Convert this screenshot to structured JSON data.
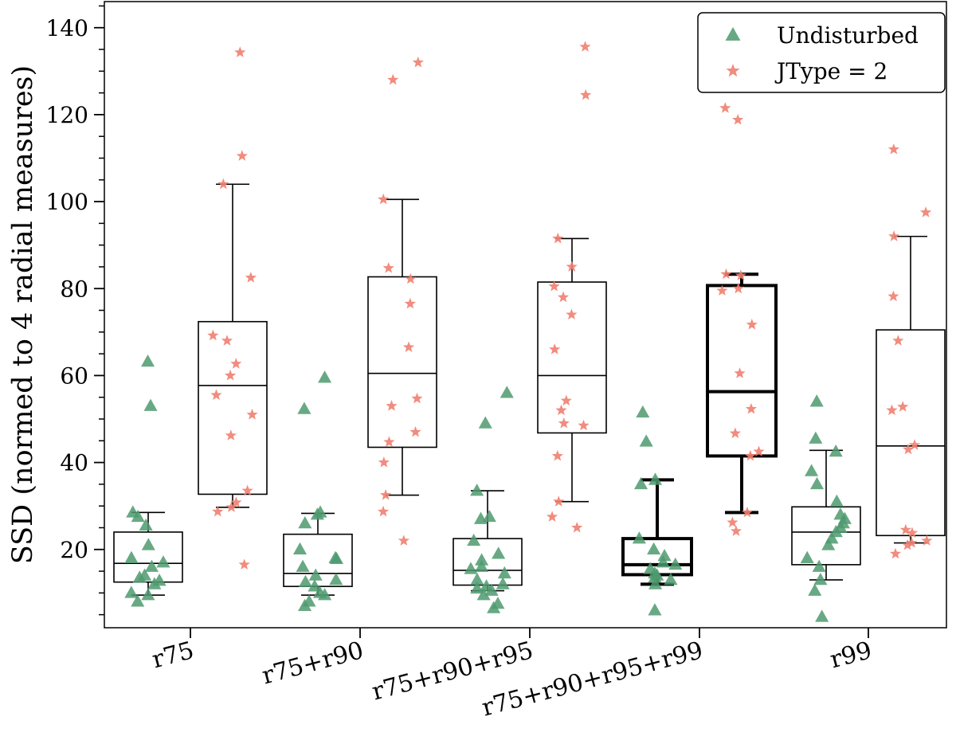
{
  "chart_data": {
    "type": "box",
    "title": "",
    "xlabel": "",
    "ylabel": "SSD (normed to 4 radial measures)",
    "ylim": [
      2,
      146
    ],
    "yticks": [
      20,
      40,
      60,
      80,
      100,
      120,
      140
    ],
    "yminor_step": 5,
    "categories": [
      "r75",
      "r75+r90",
      "r75+r90+r95",
      "r75+r90+r95+r99",
      "r99"
    ],
    "legend": {
      "position": "top-right",
      "entries": [
        {
          "label": "Undisturbed",
          "marker": "triangle",
          "color": "#4e9a6e"
        },
        {
          "label": "JType = 2",
          "marker": "star",
          "color": "#f08070"
        }
      ]
    },
    "series": [
      {
        "name": "Undisturbed",
        "marker": "triangle",
        "color": "#4e9a6e",
        "boxes": [
          {
            "whislo": 9.5,
            "q1": 12.5,
            "med": 16.8,
            "q3": 24,
            "whishi": 28.5,
            "bold": false
          },
          {
            "whislo": 9.5,
            "q1": 11.5,
            "med": 14.5,
            "q3": 23.5,
            "whishi": 28.3,
            "bold": false
          },
          {
            "whislo": 10.5,
            "q1": 11.8,
            "med": 15.2,
            "q3": 22.5,
            "whishi": 33.5,
            "bold": false
          },
          {
            "whislo": 12,
            "q1": 14.2,
            "med": 16.5,
            "q3": 22.5,
            "whishi": 36,
            "bold": true
          },
          {
            "whislo": 13,
            "q1": 16.5,
            "med": 24,
            "q3": 29.8,
            "whishi": 42.8,
            "bold": false
          }
        ],
        "points": [
          [
            63.2,
            53,
            28.5,
            27.5,
            25.5,
            21,
            18,
            17,
            16,
            14,
            13.5,
            12.8,
            12,
            10,
            9.5,
            8
          ],
          [
            59.5,
            52.3,
            28.5,
            28,
            26,
            20,
            18,
            17.8,
            16,
            14,
            13,
            12.5,
            11.5,
            10,
            9.5,
            8,
            7
          ],
          [
            56,
            49,
            33.5,
            27.5,
            27,
            22,
            19,
            17.5,
            16,
            15.5,
            14.5,
            13,
            12,
            11.5,
            11,
            10.5,
            9.5,
            7.5,
            6.5
          ],
          [
            51.5,
            44.8,
            36,
            35,
            22.5,
            20,
            18.5,
            17,
            16.5,
            15.5,
            14.5,
            14,
            13.5,
            13,
            12,
            6
          ],
          [
            54,
            45.5,
            42.5,
            38,
            35,
            31,
            28,
            27,
            26,
            25,
            24,
            22.5,
            21,
            18,
            16,
            13,
            10.5,
            4.5
          ]
        ]
      },
      {
        "name": "JType = 2",
        "marker": "star",
        "color": "#f08070",
        "boxes": [
          {
            "whislo": 29.7,
            "q1": 32.7,
            "med": 57.7,
            "q3": 72.4,
            "whishi": 104,
            "bold": false
          },
          {
            "whislo": 32.5,
            "q1": 43.5,
            "med": 60.5,
            "q3": 82.7,
            "whishi": 100.5,
            "bold": false
          },
          {
            "whislo": 31,
            "q1": 46.8,
            "med": 60,
            "q3": 81.5,
            "whishi": 91.5,
            "bold": false
          },
          {
            "whislo": 28.5,
            "q1": 41.5,
            "med": 56.3,
            "q3": 80.7,
            "whishi": 83.3,
            "bold": true
          },
          {
            "whislo": 21.5,
            "q1": 23.2,
            "med": 43.8,
            "q3": 70.5,
            "whishi": 92,
            "bold": false
          }
        ],
        "points": [
          [
            134.3,
            110.5,
            104,
            82.5,
            69.2,
            68,
            62.7,
            60,
            55.5,
            51,
            46.2,
            33.5,
            30.8,
            29.7,
            28.7,
            16.5
          ],
          [
            132,
            128,
            100.5,
            84.7,
            82.2,
            76.5,
            66.5,
            54.7,
            53,
            47,
            44.7,
            40,
            32.5,
            28.7,
            22
          ],
          [
            135.6,
            124.5,
            91.5,
            85,
            80.5,
            78,
            74,
            66,
            54.2,
            52,
            49,
            48.5,
            41.5,
            31,
            27.5,
            25
          ],
          [
            121.5,
            118.8,
            83.3,
            83,
            80,
            79.5,
            71.7,
            60.5,
            52.3,
            46.7,
            42.5,
            41.5,
            28.5,
            26.2,
            24.2
          ],
          [
            112,
            97.5,
            92,
            78.2,
            68,
            52.8,
            52,
            44,
            43,
            24.5,
            23.8,
            22,
            21.5,
            21,
            19
          ]
        ]
      }
    ]
  }
}
